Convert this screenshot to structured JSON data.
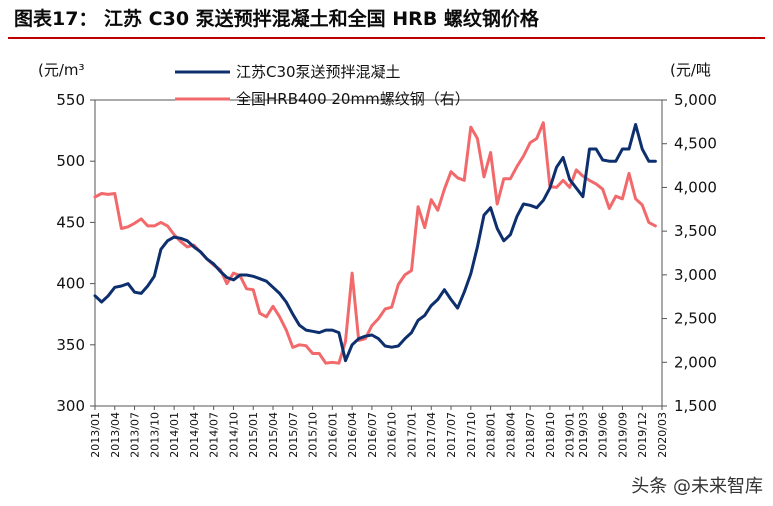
{
  "figure": {
    "title": "图表17：  江苏 C30 泵送预拌混凝土和全国 HRB 螺纹钢价格",
    "watermark": "头条 @未来智库",
    "accent_color": "#c00000"
  },
  "chart_data": {
    "type": "line",
    "left_unit": "(元/m³",
    "right_unit": "(元/吨",
    "left_axis": {
      "min": 300,
      "max": 550,
      "ticks": [
        "300",
        "350",
        "400",
        "450",
        "500",
        "550"
      ]
    },
    "right_axis": {
      "min": 1500,
      "max": 5000,
      "ticks": [
        "1,500",
        "2,000",
        "2,500",
        "3,000",
        "3,500",
        "4,000",
        "4,500",
        "5,000"
      ]
    },
    "x_tick_labels": [
      "2013/01",
      "2013/04",
      "2013/07",
      "2013/10",
      "2014/01",
      "2014/04",
      "2014/07",
      "2014/10",
      "2015/01",
      "2015/04",
      "2015/07",
      "2015/10",
      "2016/01",
      "2016/04",
      "2016/07",
      "2016/10",
      "2017/01",
      "2017/04",
      "2017/07",
      "2017/10",
      "2018/01",
      "2018/04",
      "2018/07",
      "2018/10",
      "2019/01",
      "2019/03",
      "2019/06",
      "2019/09",
      "2019/12",
      "2020/03"
    ],
    "x_start": "2013-01",
    "x_end": "2020-03",
    "legend": "top-left",
    "series": [
      {
        "name": "江苏C30泵送预拌混凝土",
        "axis": "left",
        "color": "#0d2f6e",
        "values": [
          [
            "2013-01",
            390
          ],
          [
            "2013-02",
            385
          ],
          [
            "2013-03",
            390
          ],
          [
            "2013-04",
            397
          ],
          [
            "2013-05",
            398
          ],
          [
            "2013-06",
            400
          ],
          [
            "2013-07",
            393
          ],
          [
            "2013-08",
            392
          ],
          [
            "2013-09",
            398
          ],
          [
            "2013-10",
            406
          ],
          [
            "2013-11",
            428
          ],
          [
            "2013-12",
            435
          ],
          [
            "2014-01",
            438
          ],
          [
            "2014-02",
            437
          ],
          [
            "2014-03",
            435
          ],
          [
            "2014-04",
            430
          ],
          [
            "2014-05",
            426
          ],
          [
            "2014-06",
            420
          ],
          [
            "2014-07",
            416
          ],
          [
            "2014-08",
            410
          ],
          [
            "2014-09",
            405
          ],
          [
            "2014-10",
            403
          ],
          [
            "2014-11",
            407
          ],
          [
            "2014-12",
            407
          ],
          [
            "2015-01",
            406
          ],
          [
            "2015-02",
            404
          ],
          [
            "2015-03",
            402
          ],
          [
            "2015-04",
            397
          ],
          [
            "2015-05",
            392
          ],
          [
            "2015-06",
            385
          ],
          [
            "2015-07",
            375
          ],
          [
            "2015-08",
            366
          ],
          [
            "2015-09",
            362
          ],
          [
            "2015-10",
            361
          ],
          [
            "2015-11",
            360
          ],
          [
            "2015-12",
            362
          ],
          [
            "2016-01",
            362
          ],
          [
            "2016-02",
            360
          ],
          [
            "2016-03",
            337
          ],
          [
            "2016-04",
            350
          ],
          [
            "2016-05",
            355
          ],
          [
            "2016-06",
            357
          ],
          [
            "2016-07",
            358
          ],
          [
            "2016-08",
            355
          ],
          [
            "2016-09",
            349
          ],
          [
            "2016-10",
            348
          ],
          [
            "2016-11",
            349
          ],
          [
            "2016-12",
            355
          ],
          [
            "2017-01",
            360
          ],
          [
            "2017-02",
            370
          ],
          [
            "2017-03",
            374
          ],
          [
            "2017-04",
            382
          ],
          [
            "2017-05",
            387
          ],
          [
            "2017-06",
            395
          ],
          [
            "2017-07",
            387
          ],
          [
            "2017-08",
            380
          ],
          [
            "2017-09",
            393
          ],
          [
            "2017-10",
            408
          ],
          [
            "2017-11",
            430
          ],
          [
            "2017-12",
            456
          ],
          [
            "2018-01",
            462
          ],
          [
            "2018-02",
            445
          ],
          [
            "2018-03",
            435
          ],
          [
            "2018-04",
            440
          ],
          [
            "2018-05",
            455
          ],
          [
            "2018-06",
            465
          ],
          [
            "2018-07",
            464
          ],
          [
            "2018-08",
            462
          ],
          [
            "2018-09",
            468
          ],
          [
            "2018-10",
            478
          ],
          [
            "2018-11",
            495
          ],
          [
            "2018-12",
            503
          ],
          [
            "2019-01",
            485
          ],
          [
            "2019-02",
            478
          ],
          [
            "2019-03",
            471
          ],
          [
            "2019-04",
            510
          ],
          [
            "2019-05",
            510
          ],
          [
            "2019-06",
            501
          ],
          [
            "2019-07",
            500
          ],
          [
            "2019-08",
            500
          ],
          [
            "2019-09",
            510
          ],
          [
            "2019-10",
            510
          ],
          [
            "2019-11",
            530
          ],
          [
            "2019-12",
            510
          ],
          [
            "2020-01",
            500
          ],
          [
            "2020-02",
            500
          ]
        ]
      },
      {
        "name": "全国HRB400 20mm螺纹钢（右）",
        "axis": "right",
        "color": "#f2696b",
        "values": [
          [
            "2013-01",
            3890
          ],
          [
            "2013-02",
            3930
          ],
          [
            "2013-03",
            3920
          ],
          [
            "2013-04",
            3930
          ],
          [
            "2013-05",
            3530
          ],
          [
            "2013-06",
            3550
          ],
          [
            "2013-07",
            3590
          ],
          [
            "2013-08",
            3640
          ],
          [
            "2013-09",
            3560
          ],
          [
            "2013-10",
            3560
          ],
          [
            "2013-11",
            3600
          ],
          [
            "2013-12",
            3560
          ],
          [
            "2014-01",
            3460
          ],
          [
            "2014-02",
            3380
          ],
          [
            "2014-03",
            3320
          ],
          [
            "2014-04",
            3340
          ],
          [
            "2014-05",
            3260
          ],
          [
            "2014-06",
            3180
          ],
          [
            "2014-07",
            3110
          ],
          [
            "2014-08",
            3060
          ],
          [
            "2014-09",
            2900
          ],
          [
            "2014-10",
            3020
          ],
          [
            "2014-11",
            2990
          ],
          [
            "2014-12",
            2840
          ],
          [
            "2015-01",
            2830
          ],
          [
            "2015-02",
            2560
          ],
          [
            "2015-03",
            2520
          ],
          [
            "2015-04",
            2640
          ],
          [
            "2015-05",
            2520
          ],
          [
            "2015-06",
            2370
          ],
          [
            "2015-07",
            2170
          ],
          [
            "2015-08",
            2200
          ],
          [
            "2015-09",
            2190
          ],
          [
            "2015-10",
            2100
          ],
          [
            "2015-11",
            2100
          ],
          [
            "2015-12",
            1990
          ],
          [
            "2016-01",
            2000
          ],
          [
            "2016-02",
            1990
          ],
          [
            "2016-03",
            2240
          ],
          [
            "2016-04",
            3020
          ],
          [
            "2016-05",
            2250
          ],
          [
            "2016-06",
            2270
          ],
          [
            "2016-07",
            2420
          ],
          [
            "2016-08",
            2500
          ],
          [
            "2016-09",
            2610
          ],
          [
            "2016-10",
            2630
          ],
          [
            "2016-11",
            2890
          ],
          [
            "2016-12",
            3000
          ],
          [
            "2017-01",
            3050
          ],
          [
            "2017-02",
            3780
          ],
          [
            "2017-03",
            3540
          ],
          [
            "2017-04",
            3860
          ],
          [
            "2017-05",
            3740
          ],
          [
            "2017-06",
            3980
          ],
          [
            "2017-07",
            4180
          ],
          [
            "2017-08",
            4110
          ],
          [
            "2017-09",
            4080
          ],
          [
            "2017-10",
            4690
          ],
          [
            "2017-11",
            4560
          ],
          [
            "2017-12",
            4120
          ],
          [
            "2018-01",
            4400
          ],
          [
            "2018-02",
            3810
          ],
          [
            "2018-03",
            4100
          ],
          [
            "2018-04",
            4100
          ],
          [
            "2018-05",
            4240
          ],
          [
            "2018-06",
            4360
          ],
          [
            "2018-07",
            4510
          ],
          [
            "2018-08",
            4560
          ],
          [
            "2018-09",
            4740
          ],
          [
            "2018-10",
            4010
          ],
          [
            "2018-11",
            4000
          ],
          [
            "2018-12",
            4080
          ],
          [
            "2019-01",
            4000
          ],
          [
            "2019-02",
            4200
          ],
          [
            "2019-03",
            4130
          ],
          [
            "2019-04",
            4080
          ],
          [
            "2019-05",
            4040
          ],
          [
            "2019-06",
            3980
          ],
          [
            "2019-07",
            3760
          ],
          [
            "2019-08",
            3900
          ],
          [
            "2019-09",
            3870
          ],
          [
            "2019-10",
            4160
          ],
          [
            "2019-11",
            3870
          ],
          [
            "2019-12",
            3800
          ],
          [
            "2020-01",
            3600
          ],
          [
            "2020-02",
            3560
          ]
        ]
      }
    ]
  }
}
